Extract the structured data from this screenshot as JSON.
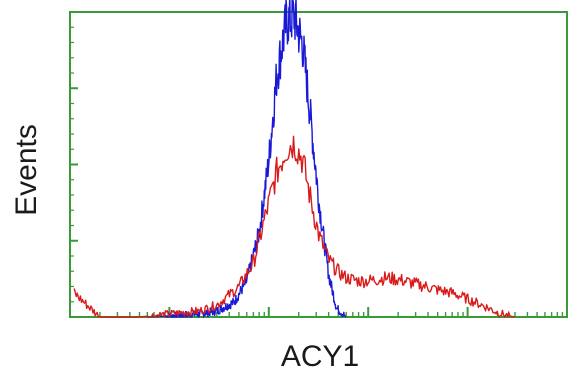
{
  "chart_data": {
    "type": "line",
    "title": "",
    "xlabel": "ACY1",
    "ylabel": "Events",
    "xscale": "log",
    "xlim": [
      0.1,
      10000
    ],
    "ylim": [
      0,
      100
    ],
    "grid": false,
    "legend": "none",
    "frame_color": "#3a9a3a",
    "series": [
      {
        "color": "#1a1ad6",
        "x": [
          0.6,
          1.2,
          2.0,
          3.0,
          4.5,
          6.0,
          8.0,
          10,
          12,
          15,
          18,
          22,
          26,
          32,
          40,
          48,
          60
        ],
        "y": [
          0,
          0.5,
          1,
          2,
          5,
          12,
          28,
          52,
          80,
          98,
          100,
          90,
          68,
          38,
          14,
          3,
          0
        ]
      },
      {
        "color": "#d81b1b",
        "x": [
          0.11,
          0.2,
          0.5,
          1,
          2,
          3,
          5,
          7,
          9,
          12,
          15,
          18,
          22,
          26,
          32,
          40,
          50,
          60,
          80,
          100,
          150,
          200,
          300,
          400,
          500,
          700,
          1000,
          1500,
          2000,
          2500,
          3000
        ],
        "y": [
          8,
          0,
          0,
          1,
          2,
          4,
          10,
          18,
          32,
          48,
          56,
          58,
          52,
          40,
          27,
          19,
          15,
          13,
          12,
          12,
          13,
          12.5,
          11,
          10,
          9,
          8,
          6,
          3.5,
          1.5,
          0.5,
          0
        ]
      }
    ]
  }
}
